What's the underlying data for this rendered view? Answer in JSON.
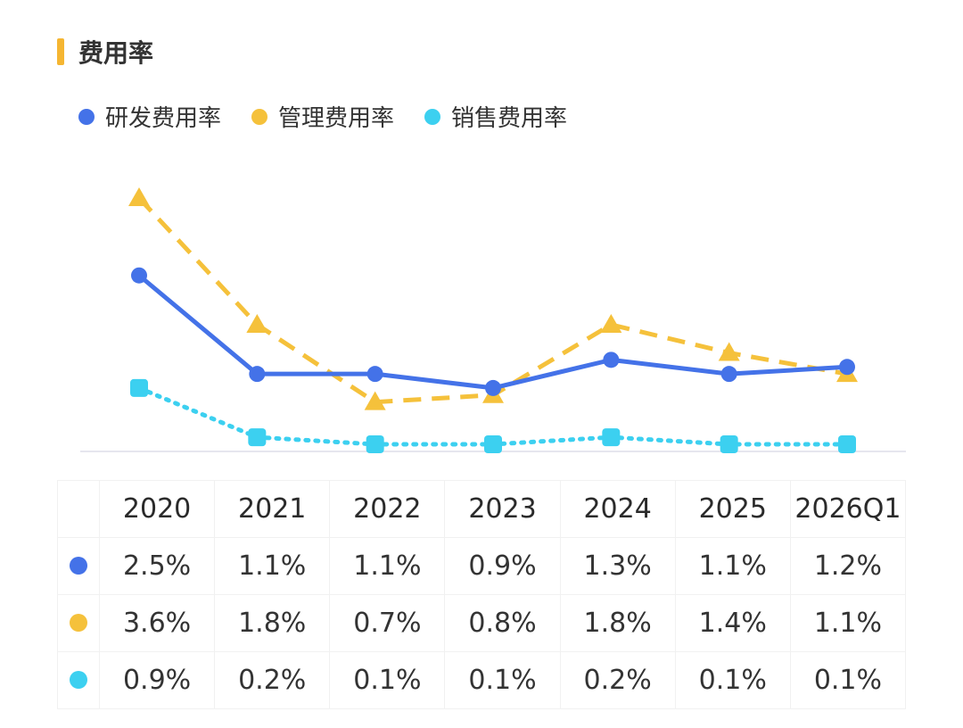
{
  "title": "费用率",
  "colors": {
    "accent": "#f5b632",
    "rd": "#4472e8",
    "mgmt": "#f5c13b",
    "sales": "#3cd0f0"
  },
  "chart_data": {
    "type": "line",
    "categories": [
      "2020",
      "2021",
      "2022",
      "2023",
      "2024",
      "2025",
      "2026Q1"
    ],
    "series": [
      {
        "name": "研发费用率",
        "values": [
          2.5,
          1.1,
          1.1,
          0.9,
          1.3,
          1.1,
          1.2
        ],
        "color": "#4472e8",
        "line": "solid",
        "marker": "circle"
      },
      {
        "name": "管理费用率",
        "values": [
          3.6,
          1.8,
          0.7,
          0.8,
          1.8,
          1.4,
          1.1
        ],
        "color": "#f5c13b",
        "line": "dashed",
        "marker": "triangle"
      },
      {
        "name": "销售费用率",
        "values": [
          0.9,
          0.2,
          0.1,
          0.1,
          0.2,
          0.1,
          0.1
        ],
        "color": "#3cd0f0",
        "line": "dotted",
        "marker": "square"
      }
    ],
    "legend_position": "top-left",
    "grid": false,
    "y_axis_visible": false
  },
  "table": {
    "header": [
      "2020",
      "2021",
      "2022",
      "2023",
      "2024",
      "2025",
      "2026Q1"
    ],
    "rows": [
      {
        "color": "#4472e8",
        "cells": [
          "2.5%",
          "1.1%",
          "1.1%",
          "0.9%",
          "1.3%",
          "1.1%",
          "1.2%"
        ]
      },
      {
        "color": "#f5c13b",
        "cells": [
          "3.6%",
          "1.8%",
          "0.7%",
          "0.8%",
          "1.8%",
          "1.4%",
          "1.1%"
        ]
      },
      {
        "color": "#3cd0f0",
        "cells": [
          "0.9%",
          "0.2%",
          "0.1%",
          "0.1%",
          "0.2%",
          "0.1%",
          "0.1%"
        ]
      }
    ]
  }
}
